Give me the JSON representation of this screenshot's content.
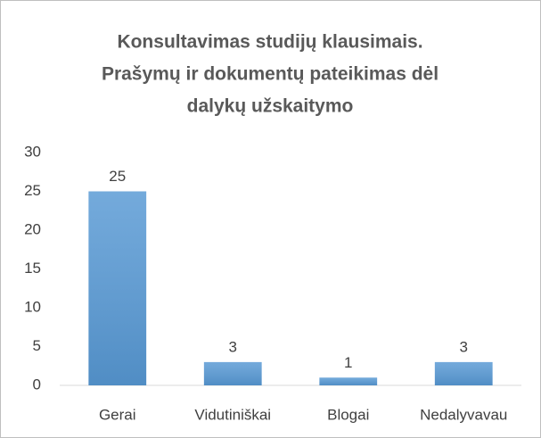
{
  "chart_data": {
    "type": "bar",
    "title": [
      "Konsultavimas studijų klausimais.",
      "Prašymų ir dokumentų pateikimas dėl",
      "dalykų užskaitymo"
    ],
    "categories": [
      "Gerai",
      "Vidutiniškai",
      "Blogai",
      "Nedalyvavau"
    ],
    "values": [
      25,
      3,
      1,
      3
    ],
    "color": "#5b9bd5",
    "ylim": [
      0,
      30
    ],
    "yticks": [
      0,
      5,
      10,
      15,
      20,
      25,
      30
    ],
    "grid": false
  }
}
